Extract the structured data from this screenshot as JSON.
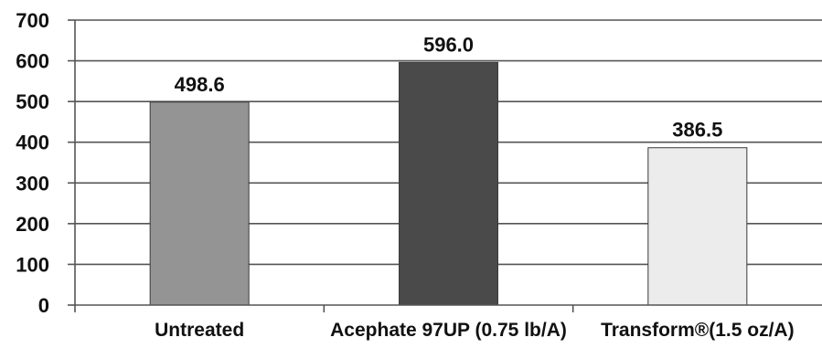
{
  "chart_data": {
    "type": "bar",
    "title": "",
    "xlabel": "",
    "ylabel": "",
    "ylim": [
      0,
      700
    ],
    "yticks": [
      0,
      100,
      200,
      300,
      400,
      500,
      600,
      700
    ],
    "grid": true,
    "legend": "none",
    "categories": [
      "Untreated",
      "Acephate 97UP (0.75 lb/A)",
      "Transform®(1.5 oz/A)"
    ],
    "values": [
      498.6,
      596.0,
      386.5
    ],
    "data_labels": [
      "498.6",
      "596.0",
      "386.5"
    ],
    "bar_colors": [
      "#949494",
      "#4a4a4a",
      "#ececec"
    ]
  }
}
